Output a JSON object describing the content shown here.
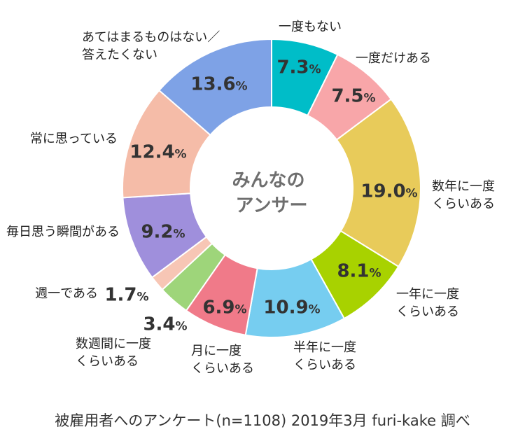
{
  "chart_data": {
    "type": "pie",
    "donut": true,
    "categories": [
      [
        "一度もない"
      ],
      [
        "一度だけある"
      ],
      [
        "数年に一度",
        "くらいある"
      ],
      [
        "一年に一度",
        "くらいある"
      ],
      [
        "半年に一度",
        "くらいある"
      ],
      [
        "月に一度",
        "くらいある"
      ],
      [
        "数週間に一度",
        "くらいある"
      ],
      [
        "週一である"
      ],
      [
        "毎日思う瞬間がある"
      ],
      [
        "常に思っている"
      ],
      [
        "あてはまるものはない／",
        "答えたくない"
      ]
    ],
    "values": [
      7.3,
      7.5,
      19.0,
      8.1,
      10.9,
      6.9,
      3.4,
      1.7,
      9.2,
      12.4,
      13.6
    ],
    "value_labels": [
      "7.3",
      "7.5",
      "19.0",
      "8.1",
      "10.9",
      "6.9",
      "3.4",
      "1.7",
      "9.2",
      "12.4",
      "13.6"
    ],
    "unit": "%",
    "colors": [
      "#00BDC8",
      "#F8A6A9",
      "#E8CB5A",
      "#A8D200",
      "#76CDF0",
      "#F07A89",
      "#9ED57A",
      "#F7C6B5",
      "#9F8FDC",
      "#F5BCA8",
      "#7EA2E6"
    ],
    "center_label": [
      "みんなの",
      "アンサー"
    ],
    "caption": "被雇用者へのアンケート(n=1108) 2019年3月 furi-kake 調べ"
  }
}
